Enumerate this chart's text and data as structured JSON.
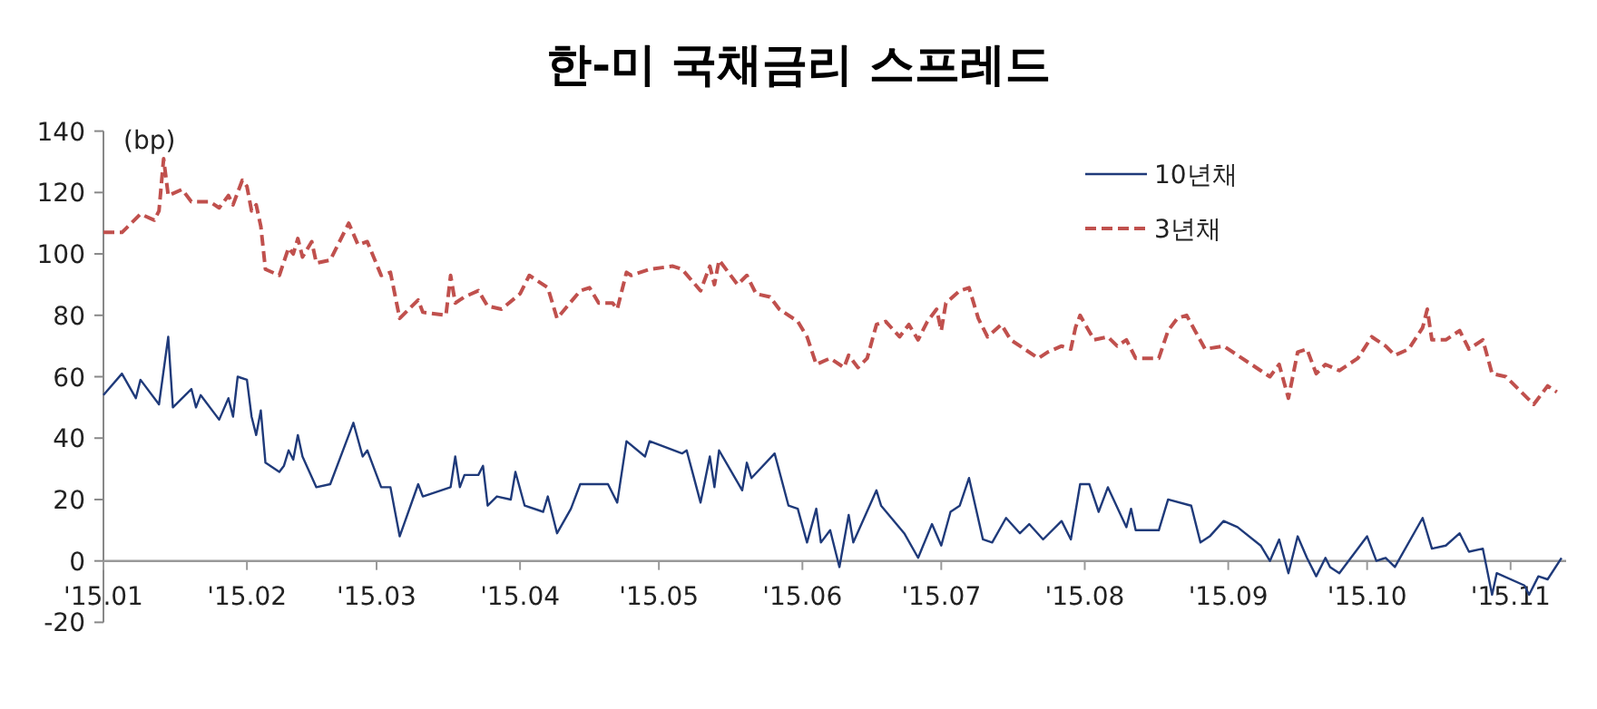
{
  "chart_data": {
    "type": "line",
    "title": "한-미 국채금리 스프레드",
    "ylabel": "(bp)",
    "legend": "top right",
    "xlim": [
      "2015-01-01",
      "2015-11-13"
    ],
    "xticks": [
      {
        "value": "2015-01-01",
        "label": "'15.01"
      },
      {
        "value": "2015-02-01",
        "label": "'15.02"
      },
      {
        "value": "2015-03-01",
        "label": "'15.03"
      },
      {
        "value": "2015-04-01",
        "label": "'15.04"
      },
      {
        "value": "2015-05-01",
        "label": "'15.05"
      },
      {
        "value": "2015-06-01",
        "label": "'15.06"
      },
      {
        "value": "2015-07-01",
        "label": "'15.07"
      },
      {
        "value": "2015-08-01",
        "label": "'15.08"
      },
      {
        "value": "2015-09-01",
        "label": "'15.09"
      },
      {
        "value": "2015-10-01",
        "label": "'15.10"
      },
      {
        "value": "2015-11-01",
        "label": "'15.11"
      }
    ],
    "ylim": [
      -20,
      140
    ],
    "yticks": [
      -20,
      0,
      20,
      40,
      60,
      80,
      100,
      120,
      140
    ],
    "series": [
      {
        "name": "10년채",
        "color": "#1f3a7a",
        "line_style": "solid",
        "x": [
          "2015-01-01",
          "2015-01-05",
          "2015-01-08",
          "2015-01-09",
          "2015-01-13",
          "2015-01-15",
          "2015-01-16",
          "2015-01-20",
          "2015-01-21",
          "2015-01-22",
          "2015-01-26",
          "2015-01-28",
          "2015-01-29",
          "2015-01-30",
          "2015-02-01",
          "2015-02-02",
          "2015-02-03",
          "2015-02-04",
          "2015-02-05",
          "2015-02-08",
          "2015-02-09",
          "2015-02-10",
          "2015-02-11",
          "2015-02-12",
          "2015-02-13",
          "2015-02-16",
          "2015-02-19",
          "2015-02-24",
          "2015-02-26",
          "2015-02-27",
          "2015-03-02",
          "2015-03-04",
          "2015-03-06",
          "2015-03-10",
          "2015-03-11",
          "2015-03-17",
          "2015-03-18",
          "2015-03-19",
          "2015-03-20",
          "2015-03-23",
          "2015-03-24",
          "2015-03-25",
          "2015-03-27",
          "2015-03-30",
          "2015-03-31",
          "2015-04-02",
          "2015-04-06",
          "2015-04-07",
          "2015-04-09",
          "2015-04-12",
          "2015-04-14",
          "2015-04-20",
          "2015-04-22",
          "2015-04-24",
          "2015-04-28",
          "2015-04-29",
          "2015-05-06",
          "2015-05-07",
          "2015-05-10",
          "2015-05-12",
          "2015-05-13",
          "2015-05-14",
          "2015-05-19",
          "2015-05-20",
          "2015-05-21",
          "2015-05-26",
          "2015-05-29",
          "2015-05-31",
          "2015-06-02",
          "2015-06-04",
          "2015-06-05",
          "2015-06-07",
          "2015-06-09",
          "2015-06-11",
          "2015-06-12",
          "2015-06-17",
          "2015-06-18",
          "2015-06-23",
          "2015-06-26",
          "2015-06-29",
          "2015-07-01",
          "2015-07-03",
          "2015-07-05",
          "2015-07-07",
          "2015-07-10",
          "2015-07-12",
          "2015-07-15",
          "2015-07-18",
          "2015-07-20",
          "2015-07-23",
          "2015-07-27",
          "2015-07-29",
          "2015-07-31",
          "2015-08-02",
          "2015-08-04",
          "2015-08-06",
          "2015-08-10",
          "2015-08-11",
          "2015-08-12",
          "2015-08-17",
          "2015-08-19",
          "2015-08-24",
          "2015-08-26",
          "2015-08-28",
          "2015-08-31",
          "2015-09-03",
          "2015-09-08",
          "2015-09-10",
          "2015-09-12",
          "2015-09-14",
          "2015-09-16",
          "2015-09-18",
          "2015-09-20",
          "2015-09-22",
          "2015-09-23",
          "2015-09-25",
          "2015-10-01",
          "2015-10-03",
          "2015-10-05",
          "2015-10-07",
          "2015-10-13",
          "2015-10-15",
          "2015-10-18",
          "2015-10-21",
          "2015-10-23",
          "2015-10-26",
          "2015-10-28",
          "2015-10-29",
          "2015-11-04",
          "2015-11-05",
          "2015-11-07",
          "2015-11-09",
          "2015-11-12"
        ],
        "values": [
          54,
          61,
          53,
          59,
          51,
          73,
          50,
          56,
          50,
          54,
          46,
          53,
          47,
          60,
          59,
          47,
          41,
          49,
          32,
          29,
          31,
          36,
          33,
          41,
          34,
          24,
          25,
          45,
          34,
          36,
          24,
          24,
          8,
          25,
          21,
          24,
          34,
          24,
          28,
          28,
          31,
          18,
          21,
          20,
          29,
          18,
          16,
          21,
          9,
          17,
          25,
          25,
          19,
          39,
          34,
          39,
          35,
          36,
          19,
          34,
          24,
          36,
          23,
          32,
          27,
          35,
          18,
          17,
          6,
          17,
          6,
          10,
          -2,
          15,
          6,
          23,
          18,
          9,
          1,
          12,
          5,
          16,
          18,
          27,
          7,
          6,
          14,
          9,
          12,
          7,
          13,
          7,
          25,
          25,
          16,
          24,
          11,
          17,
          10,
          10,
          20,
          18,
          6,
          8,
          13,
          11,
          5,
          0,
          7,
          -4,
          8,
          1,
          -5,
          1,
          -2,
          -4,
          8,
          0,
          1,
          -2,
          14,
          4,
          5,
          9,
          3,
          4,
          -11,
          -4,
          -8,
          -11,
          -5,
          -6,
          1
        ]
      },
      {
        "name": "3년채",
        "color": "#c0504d",
        "line_style": "dashed",
        "x": [
          "2015-01-01",
          "2015-01-05",
          "2015-01-09",
          "2015-01-12",
          "2015-01-13",
          "2015-01-14",
          "2015-01-15",
          "2015-01-18",
          "2015-01-20",
          "2015-01-24",
          "2015-01-26",
          "2015-01-28",
          "2015-01-29",
          "2015-01-31",
          "2015-02-01",
          "2015-02-02",
          "2015-02-03",
          "2015-02-04",
          "2015-02-05",
          "2015-02-08",
          "2015-02-10",
          "2015-02-11",
          "2015-02-12",
          "2015-02-13",
          "2015-02-15",
          "2015-02-16",
          "2015-02-19",
          "2015-02-23",
          "2015-02-25",
          "2015-02-27",
          "2015-03-02",
          "2015-03-04",
          "2015-03-06",
          "2015-03-10",
          "2015-03-11",
          "2015-03-16",
          "2015-03-17",
          "2015-03-18",
          "2015-03-20",
          "2015-03-23",
          "2015-03-25",
          "2015-03-28",
          "2015-04-01",
          "2015-04-03",
          "2015-04-07",
          "2015-04-09",
          "2015-04-14",
          "2015-04-16",
          "2015-04-18",
          "2015-04-21",
          "2015-04-22",
          "2015-04-24",
          "2015-04-25",
          "2015-04-29",
          "2015-05-04",
          "2015-05-06",
          "2015-05-10",
          "2015-05-12",
          "2015-05-13",
          "2015-05-14",
          "2015-05-18",
          "2015-05-20",
          "2015-05-22",
          "2015-05-25",
          "2015-05-27",
          "2015-05-31",
          "2015-06-02",
          "2015-06-04",
          "2015-06-07",
          "2015-06-10",
          "2015-06-11",
          "2015-06-13",
          "2015-06-15",
          "2015-06-17",
          "2015-06-19",
          "2015-06-22",
          "2015-06-24",
          "2015-06-26",
          "2015-06-28",
          "2015-06-30",
          "2015-07-01",
          "2015-07-02",
          "2015-07-05",
          "2015-07-07",
          "2015-07-09",
          "2015-07-11",
          "2015-07-14",
          "2015-07-16",
          "2015-07-19",
          "2015-07-22",
          "2015-07-24",
          "2015-07-27",
          "2015-07-29",
          "2015-07-30",
          "2015-07-31",
          "2015-08-03",
          "2015-08-06",
          "2015-08-08",
          "2015-08-10",
          "2015-08-12",
          "2015-08-17",
          "2015-08-19",
          "2015-08-21",
          "2015-08-23",
          "2015-08-27",
          "2015-08-31",
          "2015-09-03",
          "2015-09-08",
          "2015-09-10",
          "2015-09-12",
          "2015-09-14",
          "2015-09-16",
          "2015-09-18",
          "2015-09-20",
          "2015-09-22",
          "2015-09-25",
          "2015-09-29",
          "2015-10-02",
          "2015-10-05",
          "2015-10-07",
          "2015-10-10",
          "2015-10-13",
          "2015-10-14",
          "2015-10-15",
          "2015-10-18",
          "2015-10-21",
          "2015-10-23",
          "2015-10-26",
          "2015-10-28",
          "2015-10-31",
          "2015-11-04",
          "2015-11-06",
          "2015-11-07",
          "2015-11-09",
          "2015-11-11"
        ],
        "values": [
          107,
          107,
          113,
          111,
          114,
          131,
          119,
          121,
          117,
          117,
          115,
          119,
          116,
          124,
          122,
          114,
          116,
          109,
          95,
          93,
          102,
          100,
          105,
          99,
          104,
          97,
          98,
          110,
          103,
          104,
          93,
          94,
          79,
          85,
          81,
          80,
          93,
          84,
          86,
          88,
          83,
          82,
          87,
          93,
          89,
          79,
          88,
          89,
          84,
          84,
          82,
          94,
          93,
          95,
          96,
          95,
          88,
          96,
          90,
          98,
          90,
          93,
          87,
          86,
          82,
          78,
          73,
          64,
          66,
          63,
          67,
          63,
          66,
          77,
          78,
          73,
          77,
          72,
          78,
          82,
          75,
          84,
          88,
          89,
          79,
          73,
          77,
          72,
          69,
          66,
          68,
          70,
          69,
          76,
          80,
          72,
          73,
          70,
          72,
          66,
          66,
          75,
          79,
          80,
          69,
          70,
          67,
          62,
          60,
          64,
          53,
          68,
          69,
          61,
          64,
          62,
          66,
          73,
          70,
          67,
          69,
          76,
          82,
          72,
          72,
          75,
          69,
          72,
          61,
          60,
          54,
          51,
          53,
          57,
          55
        ]
      }
    ]
  }
}
